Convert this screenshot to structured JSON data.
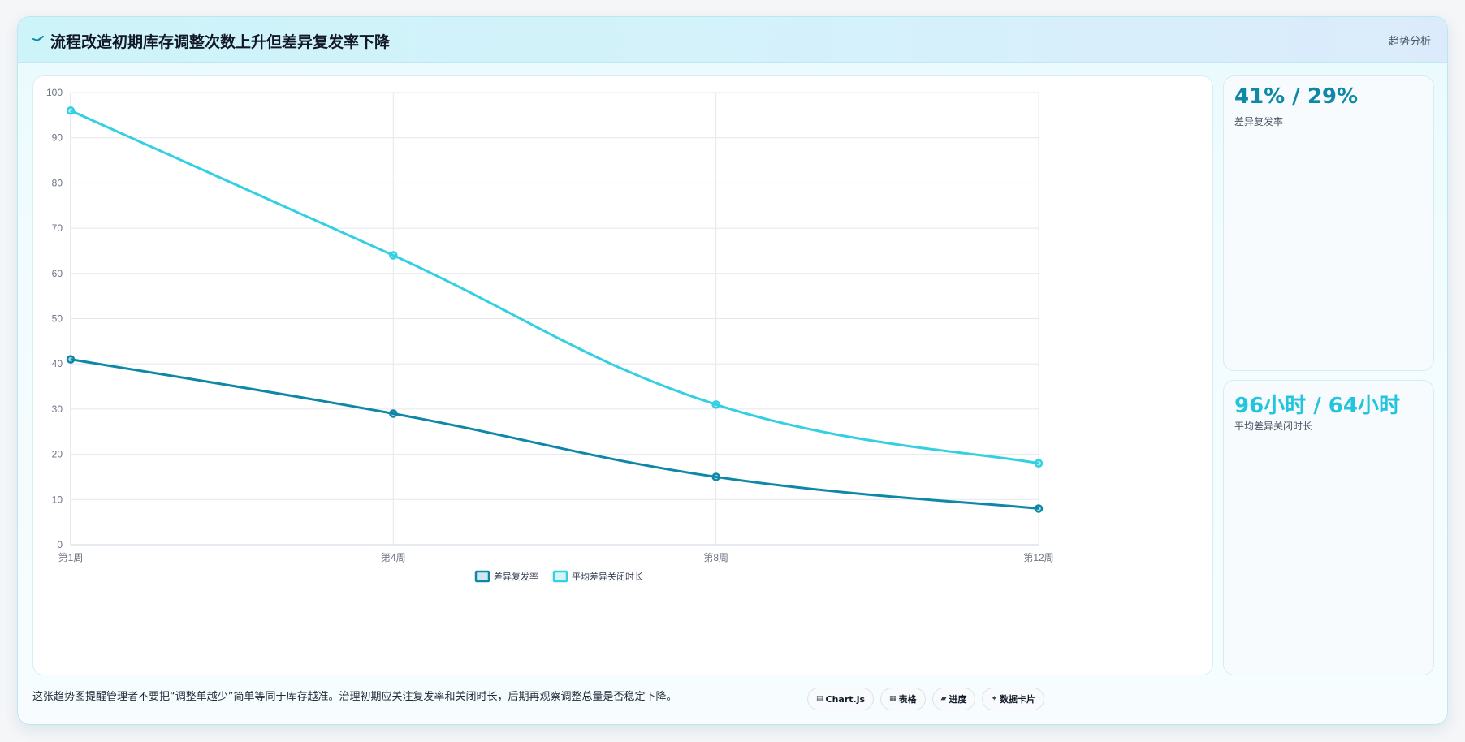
{
  "header": {
    "title": "流程改造初期库存调整次数上升但差异复发率下降",
    "tag": "趋势分析"
  },
  "kpis": [
    {
      "value": "41% / 29%",
      "label": "差异复发率"
    },
    {
      "value": "96小时 / 64小时",
      "label": "平均差异关闭时长"
    }
  ],
  "footer": {
    "note": "这张趋势图提醒管理者不要把“调整单越少”简单等同于库存越准。治理初期应关注复发率和关闭时长，后期再观察调整总量是否稳定下降。",
    "chips": [
      {
        "icon": "chart-icon",
        "glyph": "▤",
        "label": "Chart.js"
      },
      {
        "icon": "table-icon",
        "glyph": "▦",
        "label": "表格"
      },
      {
        "icon": "progress-icon",
        "glyph": "▰",
        "label": "进度"
      },
      {
        "icon": "card-icon",
        "glyph": "✦",
        "label": "数据卡片"
      }
    ]
  },
  "chart_data": {
    "type": "line",
    "categories": [
      "第1周",
      "第4周",
      "第8周",
      "第12周"
    ],
    "series": [
      {
        "name": "差异复发率",
        "values": [
          41,
          29,
          15,
          8
        ],
        "color": "#0e88a6"
      },
      {
        "name": "平均差异关闭时长",
        "values": [
          96,
          64,
          31,
          18
        ],
        "color": "#33cfe3"
      }
    ],
    "ylim": [
      0,
      100
    ],
    "yticks": [
      0,
      10,
      20,
      30,
      40,
      50,
      60,
      70,
      80,
      90,
      100
    ],
    "grid": true,
    "legend": "bottom-center"
  }
}
